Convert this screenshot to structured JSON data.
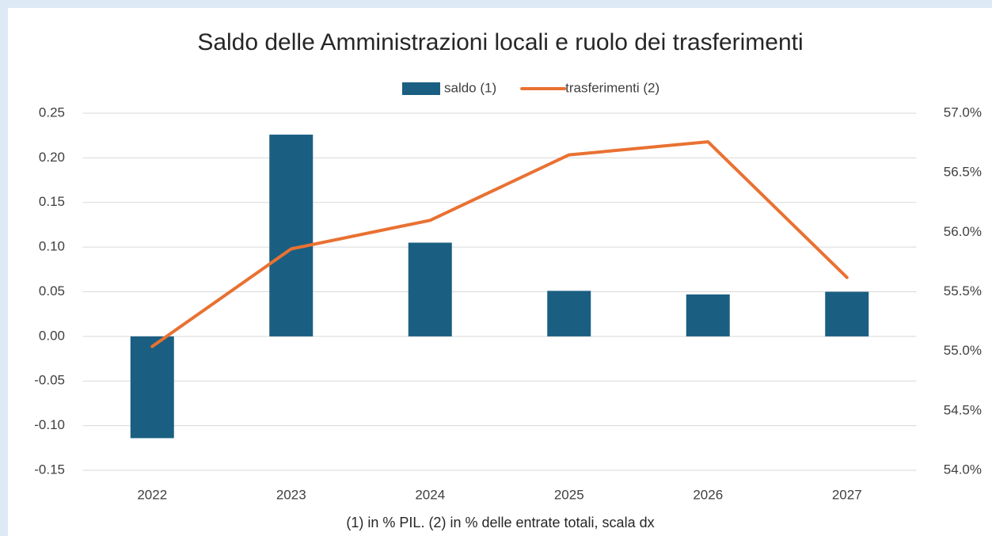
{
  "chart_data": {
    "type": "bar_line",
    "title": "Saldo delle Amministrazioni locali e ruolo dei trasferimenti",
    "note": "(1) in % PIL. (2) in % delle entrate totali, scala dx",
    "categories": [
      "2022",
      "2023",
      "2024",
      "2025",
      "2026",
      "2027"
    ],
    "series": [
      {
        "name": "saldo (1)",
        "type": "bar",
        "color": "#1a5f82",
        "values": [
          -0.114,
          0.226,
          0.105,
          0.051,
          0.047,
          0.05
        ]
      },
      {
        "name": "trasferimenti (2)",
        "type": "line",
        "axis": "y2",
        "color": "#e97132",
        "values": [
          55.04,
          55.86,
          56.1,
          56.65,
          56.76,
          55.62
        ]
      }
    ],
    "ylim": [
      -0.15,
      0.25
    ],
    "yticks": [
      -0.15,
      {
        "value": -0.1,
        "label": "-0.10"
      },
      -0.05,
      {
        "value": 0,
        "label": "0.00"
      },
      0.05,
      {
        "value": 0.1,
        "label": "0.10"
      },
      0.15,
      {
        "value": 0.2,
        "label": "0.20"
      },
      0.25
    ],
    "y2lim": [
      54,
      57
    ],
    "y2ticks": [
      {
        "value": 54,
        "label": "54.0%"
      },
      {
        "value": 54.5,
        "label": "54.5%"
      },
      {
        "value": 55,
        "label": "55.0%"
      },
      {
        "value": 55.5,
        "label": "55.5%"
      },
      {
        "value": 56,
        "label": "56.0%"
      },
      {
        "value": 56.5,
        "label": "56.5%"
      },
      {
        "value": 57,
        "label": "57.0%"
      }
    ],
    "grid": true,
    "legend": "top"
  }
}
